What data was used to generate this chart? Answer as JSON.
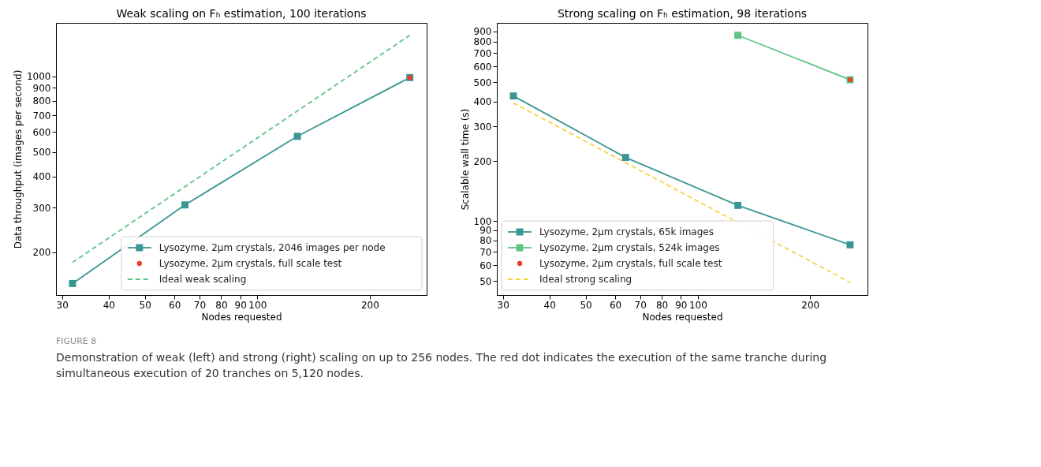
{
  "chart_data": [
    {
      "type": "line",
      "title": "Weak scaling on Fₕ estimation, 100 iterations",
      "xlabel": "Nodes requested",
      "ylabel": "Data throughput (images per second)",
      "log": "xy",
      "legend": "bottom right",
      "grid": false,
      "x": [
        32,
        64,
        128,
        256
      ],
      "xlim": [
        28.9,
        284
      ],
      "ylim": [
        135,
        1630
      ],
      "xticks": [
        30,
        40,
        50,
        60,
        70,
        80,
        90,
        100,
        200
      ],
      "yticks": [
        200,
        300,
        400,
        500,
        600,
        700,
        800,
        900,
        1000
      ],
      "series": [
        {
          "name": "Lysozyme, 2μm crystals, 2046 images per node",
          "color": "#3a9693",
          "marker": "square",
          "line_style": "solid",
          "values": [
            150,
            308,
            577,
            988
          ]
        },
        {
          "name": "Lysozyme, 2μm crystals, full scale test",
          "color": "#e8402a",
          "type": "scatter",
          "marker": "circle",
          "x": [
            256
          ],
          "values": [
            988
          ]
        },
        {
          "name": "Ideal weak scaling",
          "color": "#5ec384",
          "marker": "none",
          "line_style": "dashed",
          "x": [
            32,
            256
          ],
          "values": [
            182,
            1456
          ]
        }
      ],
      "annotations": [
        "FIGURE 8",
        "Demonstration of weak (left) and strong (right) scaling on up to 256 nodes. The red dot indicates the execution of the same tranche during simultaneous execution of 20 tranches on 5,120 nodes."
      ]
    },
    {
      "type": "line",
      "title": "Strong scaling on Fₕ estimation, 98 iterations",
      "xlabel": "Nodes requested",
      "ylabel": "Scalable wall time (s)",
      "log": "xy",
      "legend": "bottom left",
      "grid": false,
      "x": [
        32,
        64,
        128,
        256
      ],
      "xlim": [
        28.9,
        285
      ],
      "ylim": [
        42.5,
        993
      ],
      "xticks": [
        30,
        40,
        50,
        60,
        70,
        80,
        90,
        100,
        200
      ],
      "yticks": [
        50,
        60,
        70,
        80,
        90,
        100,
        200,
        300,
        400,
        500,
        600,
        700,
        800,
        900
      ],
      "series": [
        {
          "name": "Lysozyme, 2μm crystals, 65k images",
          "color": "#3a9693",
          "marker": "square",
          "line_style": "solid",
          "values": [
            426,
            209,
            120,
            76
          ]
        },
        {
          "name": "Lysozyme, 2μm crystals, 524k images",
          "color": "#5ec384",
          "marker": "square",
          "line_style": "solid",
          "x": [
            128,
            256
          ],
          "values": [
            860,
            514
          ]
        },
        {
          "name": "Lysozyme, 2μm crystals, full scale test",
          "color": "#e8402a",
          "type": "scatter",
          "marker": "circle",
          "x": [
            256
          ],
          "values": [
            514
          ]
        },
        {
          "name": "Ideal strong scaling",
          "color": "#f5d442",
          "marker": "none",
          "line_style": "dashed",
          "x": [
            32,
            256
          ],
          "values": [
            393,
            49.2
          ]
        }
      ]
    }
  ]
}
